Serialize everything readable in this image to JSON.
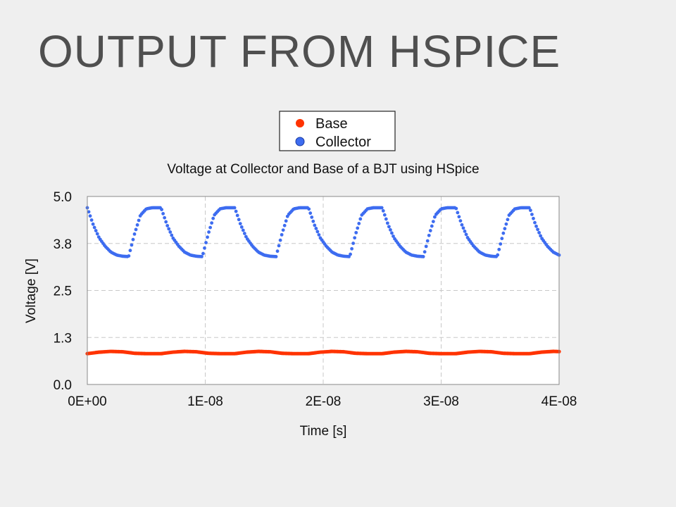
{
  "slide": {
    "title": "OUTPUT FROM HSPICE"
  },
  "colors": {
    "base": "#ff3300",
    "collector": "#3d6cf0",
    "background": "#efefef",
    "grid": "#c8c8c8"
  },
  "chart_data": {
    "type": "scatter",
    "title": "Voltage at Collector and Base of a BJT using HSpice",
    "xlabel": "Time [s]",
    "ylabel": "Voltage [V]",
    "xlim": [
      0,
      4e-08
    ],
    "ylim": [
      0,
      5
    ],
    "x_ticks": [
      "0E+00",
      "1E-08",
      "2E-08",
      "3E-08",
      "4E-08"
    ],
    "y_ticks": [
      "0.0",
      "1.3",
      "2.5",
      "3.8",
      "5.0"
    ],
    "grid": true,
    "legend_position": "top-center",
    "period_s": 6.25e-09,
    "series": [
      {
        "name": "Base",
        "color": "#ff3300",
        "pattern": "square-wave",
        "low_V": 0.82,
        "high_V": 0.88,
        "x": [
          0,
          1e-09,
          2e-09,
          3e-09,
          4e-09,
          5e-09,
          6e-09
        ],
        "y": [
          0.82,
          0.86,
          0.88,
          0.87,
          0.83,
          0.82,
          0.82
        ]
      },
      {
        "name": "Collector",
        "color": "#3d6cf0",
        "pattern": "periodic exponential charge/discharge",
        "min_V": 3.4,
        "max_V": 4.7,
        "x": [
          0,
          5e-10,
          1e-09,
          1.5e-09,
          2e-09,
          2.5e-09,
          3e-09,
          3.5e-09,
          4e-09,
          4.5e-09,
          5e-09,
          5.5e-09,
          6e-09,
          6.25e-09
        ],
        "y": [
          4.7,
          4.25,
          3.9,
          3.68,
          3.52,
          3.44,
          3.41,
          3.4,
          4.0,
          4.5,
          4.67,
          4.7,
          4.7,
          4.7
        ]
      }
    ]
  }
}
